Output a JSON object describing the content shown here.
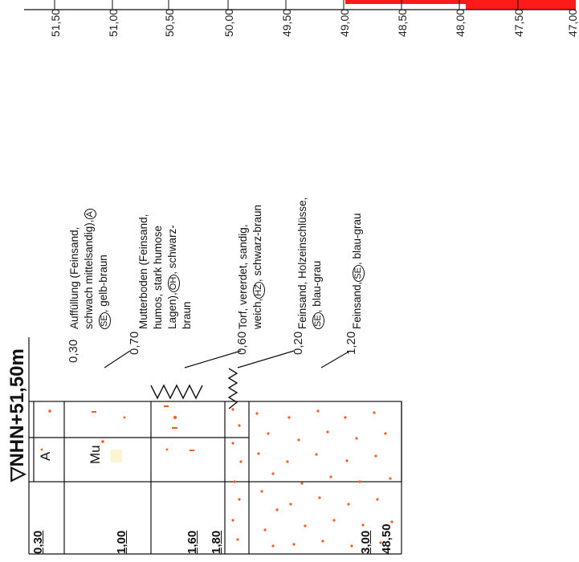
{
  "header": {
    "title": "▽NHN+51,50m"
  },
  "scale": {
    "labels": [
      "51,50",
      "51,00",
      "50,50",
      "50,00",
      "49,50",
      "49,00",
      "48,50",
      "48,00",
      "47,50",
      "47,00"
    ],
    "bar_color": "#ff1a1a"
  },
  "depths": {
    "d1": "0,30",
    "d2": "1,00",
    "d3": "1,60",
    "d4": "1,80",
    "d5": "3,00",
    "bottom_elevation": "48,50"
  },
  "thicknesses": {
    "t1": "0,30",
    "t2": "0,70",
    "t3": "0,60",
    "t4": "0,20",
    "t5": "1,20"
  },
  "layers": {
    "l1": {
      "code": "A",
      "letter": "A"
    },
    "l2": {
      "code": "Mu",
      "letter": "Mu"
    },
    "l3": {
      "code": "HZ"
    },
    "l4": {
      "code": "SE"
    },
    "l5": {
      "code": "SE"
    }
  },
  "descriptions": {
    "l1": {
      "a": "Auffüllung (Feinsand,",
      "b": "schwach mittelsandig),",
      "code_a": "A",
      "code_se": "SE",
      "c": ", gelb-braun"
    },
    "l2": {
      "a": "Mutterboden (Feinsand,",
      "b": "humos, stark humose",
      "c": "Lagen),",
      "code": "OH",
      "d": ", schwarz-",
      "e": "braun"
    },
    "l3": {
      "a": "Torf, vererdet, sandig,",
      "b": "weich,",
      "code": "HZ",
      "c": ", schwarz-braun"
    },
    "l4": {
      "a": "Feinsand, Holzeinschlüsse,",
      "code": "SE",
      "b": ", blau-grau"
    },
    "l5": {
      "a": "Feinsand,",
      "code": "SE",
      "b": ", blau-grau"
    }
  },
  "colors": {
    "sand_dot": "#ff5a1e",
    "line": "#111111"
  }
}
